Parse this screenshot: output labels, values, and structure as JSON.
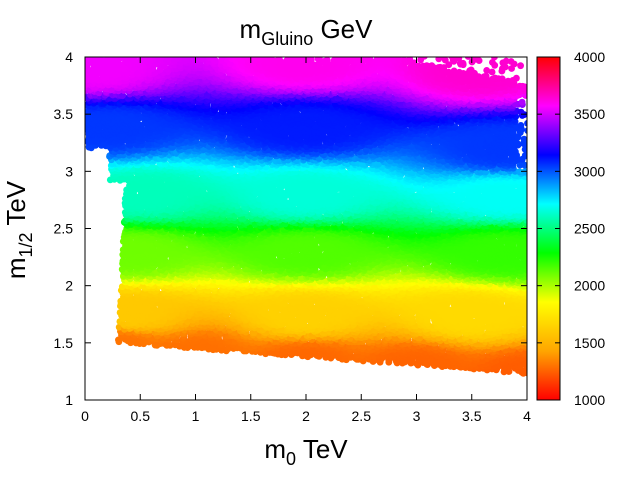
{
  "chart_data": {
    "type": "scatter",
    "title": {
      "main": "m",
      "sub": "Gluino",
      "unit": " GeV"
    },
    "xlabel": {
      "main": "m",
      "sub": "0",
      "unit": " TeV"
    },
    "ylabel": {
      "main": "m",
      "sub": "1/2",
      "unit": " TeV"
    },
    "xlim": [
      0,
      4
    ],
    "ylim": [
      1,
      4
    ],
    "xticks": [
      "0",
      "0.5",
      "1",
      "1.5",
      "2",
      "2.5",
      "3",
      "3.5",
      "4"
    ],
    "yticks": [
      "1",
      "1.5",
      "2",
      "2.5",
      "3",
      "3.5",
      "4"
    ],
    "colorbar": {
      "range": [
        1000,
        4000
      ],
      "ticks": [
        "1000",
        "1500",
        "2000",
        "2500",
        "3000",
        "3500",
        "4000"
      ],
      "palette": [
        "#ff0000",
        "#ffa500",
        "#ffff00",
        "#00ff00",
        "#00ffff",
        "#0000ff",
        "#ff00ff",
        "#ff0000"
      ]
    },
    "color_variable": "Gluino mass (GeV)",
    "points": [
      {
        "m0": 0.3,
        "m12": 1.5,
        "m_gluino": 1300
      },
      {
        "m0": 1.0,
        "m12": 1.42,
        "m_gluino": 1290
      },
      {
        "m0": 2.0,
        "m12": 1.36,
        "m_gluino": 1270
      },
      {
        "m0": 3.0,
        "m12": 1.3,
        "m_gluino": 1260
      },
      {
        "m0": 4.0,
        "m12": 1.23,
        "m_gluino": 1240
      },
      {
        "m0": 0.4,
        "m12": 1.75,
        "m_gluino": 1600
      },
      {
        "m0": 2.0,
        "m12": 1.75,
        "m_gluino": 1640
      },
      {
        "m0": 3.5,
        "m12": 1.75,
        "m_gluino": 1680
      },
      {
        "m0": 0.4,
        "m12": 2.3,
        "m_gluino": 2100
      },
      {
        "m0": 2.0,
        "m12": 2.3,
        "m_gluino": 2150
      },
      {
        "m0": 3.8,
        "m12": 2.3,
        "m_gluino": 2200
      },
      {
        "m0": 0.5,
        "m12": 2.8,
        "m_gluino": 2600
      },
      {
        "m0": 2.0,
        "m12": 2.8,
        "m_gluino": 2650
      },
      {
        "m0": 3.8,
        "m12": 2.8,
        "m_gluino": 2700
      },
      {
        "m0": 0.2,
        "m12": 3.4,
        "m_gluino": 3050
      },
      {
        "m0": 2.0,
        "m12": 3.4,
        "m_gluino": 3100
      },
      {
        "m0": 3.8,
        "m12": 3.2,
        "m_gluino": 3050
      },
      {
        "m0": 0.1,
        "m12": 3.9,
        "m_gluino": 3550
      },
      {
        "m0": 2.0,
        "m12": 3.95,
        "m_gluino": 3600
      },
      {
        "m0": 3.6,
        "m12": 3.9,
        "m_gluino": 3650
      }
    ]
  }
}
